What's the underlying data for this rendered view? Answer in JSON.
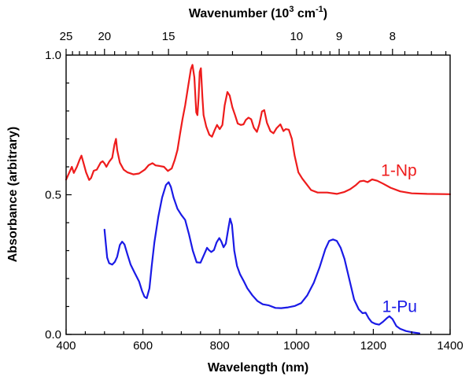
{
  "chart_data": {
    "type": "line",
    "title": "",
    "xlabel": "Wavelength (nm)",
    "ylabel": "Absorbance (arbitrary)",
    "top_xlabel": {
      "prefix": "Wavenumber (10",
      "sup1": "3",
      "mid": " cm",
      "sup2": "-1",
      "suffix": ")"
    },
    "xlim": [
      400,
      1400
    ],
    "ylim": [
      0,
      1
    ],
    "x_ticks": [
      400,
      600,
      800,
      1000,
      1200,
      1400
    ],
    "x_tick_labels": [
      "400",
      "600",
      "800",
      "1000",
      "1200",
      "1400"
    ],
    "y_ticks": [
      0,
      0.5,
      1.0
    ],
    "y_tick_labels": [
      "0.0",
      "0.5",
      "1.0"
    ],
    "top_ticks": [
      25,
      20,
      15,
      10,
      9,
      8
    ],
    "top_tick_labels": [
      "25",
      "20",
      "15",
      "10",
      "9",
      "8"
    ],
    "grid": false,
    "series": [
      {
        "name": "1-Np",
        "color": "#ee1c1c",
        "points": [
          [
            400,
            0.554
          ],
          [
            410,
            0.585
          ],
          [
            415,
            0.6
          ],
          [
            420,
            0.578
          ],
          [
            428,
            0.6
          ],
          [
            435,
            0.625
          ],
          [
            440,
            0.64
          ],
          [
            445,
            0.615
          ],
          [
            452,
            0.58
          ],
          [
            460,
            0.553
          ],
          [
            465,
            0.56
          ],
          [
            472,
            0.586
          ],
          [
            480,
            0.59
          ],
          [
            490,
            0.615
          ],
          [
            495,
            0.62
          ],
          [
            500,
            0.612
          ],
          [
            505,
            0.6
          ],
          [
            512,
            0.618
          ],
          [
            520,
            0.632
          ],
          [
            526,
            0.68
          ],
          [
            530,
            0.7
          ],
          [
            533,
            0.66
          ],
          [
            540,
            0.615
          ],
          [
            550,
            0.59
          ],
          [
            560,
            0.58
          ],
          [
            575,
            0.573
          ],
          [
            590,
            0.576
          ],
          [
            605,
            0.59
          ],
          [
            615,
            0.606
          ],
          [
            625,
            0.613
          ],
          [
            633,
            0.605
          ],
          [
            643,
            0.603
          ],
          [
            655,
            0.6
          ],
          [
            665,
            0.585
          ],
          [
            675,
            0.594
          ],
          [
            683,
            0.625
          ],
          [
            690,
            0.66
          ],
          [
            697,
            0.72
          ],
          [
            703,
            0.77
          ],
          [
            710,
            0.82
          ],
          [
            718,
            0.89
          ],
          [
            725,
            0.95
          ],
          [
            729,
            0.965
          ],
          [
            734,
            0.92
          ],
          [
            739,
            0.795
          ],
          [
            742,
            0.785
          ],
          [
            745,
            0.85
          ],
          [
            748,
            0.94
          ],
          [
            751,
            0.953
          ],
          [
            755,
            0.85
          ],
          [
            758,
            0.785
          ],
          [
            765,
            0.744
          ],
          [
            773,
            0.715
          ],
          [
            780,
            0.708
          ],
          [
            787,
            0.732
          ],
          [
            793,
            0.75
          ],
          [
            800,
            0.735
          ],
          [
            807,
            0.75
          ],
          [
            813,
            0.82
          ],
          [
            820,
            0.868
          ],
          [
            826,
            0.855
          ],
          [
            833,
            0.813
          ],
          [
            840,
            0.785
          ],
          [
            847,
            0.755
          ],
          [
            855,
            0.75
          ],
          [
            862,
            0.752
          ],
          [
            868,
            0.768
          ],
          [
            875,
            0.776
          ],
          [
            882,
            0.77
          ],
          [
            889,
            0.74
          ],
          [
            897,
            0.725
          ],
          [
            903,
            0.752
          ],
          [
            910,
            0.798
          ],
          [
            916,
            0.803
          ],
          [
            923,
            0.758
          ],
          [
            932,
            0.728
          ],
          [
            940,
            0.72
          ],
          [
            948,
            0.738
          ],
          [
            958,
            0.752
          ],
          [
            966,
            0.728
          ],
          [
            972,
            0.735
          ],
          [
            980,
            0.733
          ],
          [
            988,
            0.7
          ],
          [
            995,
            0.64
          ],
          [
            1005,
            0.58
          ],
          [
            1015,
            0.558
          ],
          [
            1025,
            0.54
          ],
          [
            1038,
            0.517
          ],
          [
            1055,
            0.508
          ],
          [
            1080,
            0.508
          ],
          [
            1105,
            0.503
          ],
          [
            1125,
            0.51
          ],
          [
            1140,
            0.52
          ],
          [
            1155,
            0.535
          ],
          [
            1165,
            0.548
          ],
          [
            1175,
            0.55
          ],
          [
            1185,
            0.545
          ],
          [
            1197,
            0.555
          ],
          [
            1210,
            0.55
          ],
          [
            1225,
            0.54
          ],
          [
            1245,
            0.525
          ],
          [
            1270,
            0.512
          ],
          [
            1300,
            0.505
          ],
          [
            1340,
            0.503
          ],
          [
            1400,
            0.502
          ]
        ]
      },
      {
        "name": "1-Pu",
        "color": "#1a1ae6",
        "points": [
          [
            500,
            0.375
          ],
          [
            503,
            0.33
          ],
          [
            507,
            0.275
          ],
          [
            512,
            0.255
          ],
          [
            520,
            0.25
          ],
          [
            527,
            0.26
          ],
          [
            533,
            0.278
          ],
          [
            540,
            0.32
          ],
          [
            546,
            0.332
          ],
          [
            552,
            0.322
          ],
          [
            560,
            0.285
          ],
          [
            568,
            0.25
          ],
          [
            578,
            0.222
          ],
          [
            590,
            0.19
          ],
          [
            598,
            0.155
          ],
          [
            604,
            0.135
          ],
          [
            610,
            0.13
          ],
          [
            617,
            0.165
          ],
          [
            623,
            0.245
          ],
          [
            630,
            0.33
          ],
          [
            640,
            0.42
          ],
          [
            650,
            0.49
          ],
          [
            660,
            0.535
          ],
          [
            667,
            0.545
          ],
          [
            673,
            0.528
          ],
          [
            680,
            0.49
          ],
          [
            690,
            0.45
          ],
          [
            700,
            0.428
          ],
          [
            710,
            0.41
          ],
          [
            720,
            0.358
          ],
          [
            730,
            0.3
          ],
          [
            740,
            0.258
          ],
          [
            750,
            0.257
          ],
          [
            760,
            0.288
          ],
          [
            767,
            0.31
          ],
          [
            772,
            0.302
          ],
          [
            778,
            0.295
          ],
          [
            785,
            0.302
          ],
          [
            792,
            0.33
          ],
          [
            799,
            0.345
          ],
          [
            804,
            0.333
          ],
          [
            810,
            0.312
          ],
          [
            816,
            0.325
          ],
          [
            822,
            0.375
          ],
          [
            827,
            0.415
          ],
          [
            832,
            0.392
          ],
          [
            838,
            0.3
          ],
          [
            845,
            0.245
          ],
          [
            853,
            0.215
          ],
          [
            862,
            0.192
          ],
          [
            872,
            0.165
          ],
          [
            885,
            0.14
          ],
          [
            898,
            0.12
          ],
          [
            912,
            0.108
          ],
          [
            928,
            0.104
          ],
          [
            945,
            0.095
          ],
          [
            960,
            0.094
          ],
          [
            978,
            0.097
          ],
          [
            996,
            0.102
          ],
          [
            1012,
            0.112
          ],
          [
            1028,
            0.14
          ],
          [
            1045,
            0.185
          ],
          [
            1060,
            0.24
          ],
          [
            1075,
            0.305
          ],
          [
            1085,
            0.335
          ],
          [
            1095,
            0.34
          ],
          [
            1105,
            0.335
          ],
          [
            1115,
            0.31
          ],
          [
            1125,
            0.27
          ],
          [
            1138,
            0.195
          ],
          [
            1150,
            0.125
          ],
          [
            1162,
            0.09
          ],
          [
            1172,
            0.076
          ],
          [
            1180,
            0.078
          ],
          [
            1188,
            0.058
          ],
          [
            1196,
            0.044
          ],
          [
            1205,
            0.038
          ],
          [
            1215,
            0.035
          ],
          [
            1225,
            0.045
          ],
          [
            1235,
            0.058
          ],
          [
            1242,
            0.065
          ],
          [
            1250,
            0.055
          ],
          [
            1260,
            0.03
          ],
          [
            1270,
            0.02
          ],
          [
            1285,
            0.012
          ],
          [
            1300,
            0.008
          ],
          [
            1320,
            0.004
          ]
        ]
      }
    ],
    "series_labels": [
      {
        "text": "1-Np",
        "x": 1220,
        "y": 0.568,
        "color": "#ee1c1c"
      },
      {
        "text": "1-Pu",
        "x": 1223,
        "y": 0.08,
        "color": "#1a1ae6"
      }
    ]
  }
}
